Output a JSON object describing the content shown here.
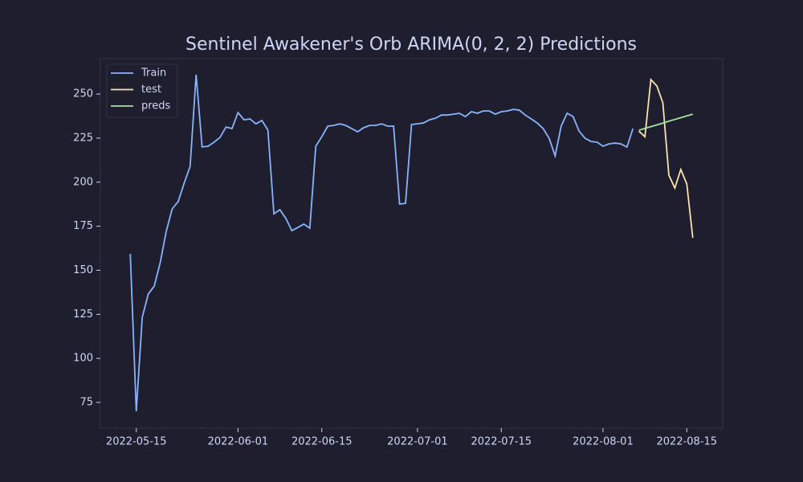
{
  "chart_data": {
    "type": "line",
    "title": "Sentinel Awakener's Orb ARIMA(0, 2, 2) Predictions",
    "xlim": [
      "2022-05-09",
      "2022-08-21"
    ],
    "xticks": [
      "2022-05-15",
      "2022-06-01",
      "2022-06-15",
      "2022-07-01",
      "2022-07-15",
      "2022-08-01",
      "2022-08-15"
    ],
    "ylim": [
      60.4,
      270.1
    ],
    "yticks": [
      75,
      100,
      125,
      150,
      175,
      200,
      225,
      250
    ],
    "legend": "upper left",
    "series": [
      {
        "name": "Train",
        "color": "#89b4fa",
        "x": [
          "2022-05-14",
          "2022-05-15",
          "2022-05-16",
          "2022-05-17",
          "2022-05-18",
          "2022-05-19",
          "2022-05-20",
          "2022-05-21",
          "2022-05-22",
          "2022-05-23",
          "2022-05-24",
          "2022-05-25",
          "2022-05-26",
          "2022-05-27",
          "2022-05-28",
          "2022-05-29",
          "2022-05-30",
          "2022-05-31",
          "2022-06-01",
          "2022-06-02",
          "2022-06-03",
          "2022-06-04",
          "2022-06-05",
          "2022-06-06",
          "2022-06-07",
          "2022-06-08",
          "2022-06-09",
          "2022-06-10",
          "2022-06-11",
          "2022-06-12",
          "2022-06-13",
          "2022-06-14",
          "2022-06-15",
          "2022-06-16",
          "2022-06-17",
          "2022-06-18",
          "2022-06-19",
          "2022-06-20",
          "2022-06-21",
          "2022-06-22",
          "2022-06-23",
          "2022-06-24",
          "2022-06-25",
          "2022-06-26",
          "2022-06-27",
          "2022-06-28",
          "2022-06-29",
          "2022-06-30",
          "2022-07-01",
          "2022-07-02",
          "2022-07-03",
          "2022-07-04",
          "2022-07-05",
          "2022-07-06",
          "2022-07-07",
          "2022-07-08",
          "2022-07-09",
          "2022-07-10",
          "2022-07-11",
          "2022-07-12",
          "2022-07-13",
          "2022-07-14",
          "2022-07-15",
          "2022-07-16",
          "2022-07-17",
          "2022-07-18",
          "2022-07-19",
          "2022-07-20",
          "2022-07-21",
          "2022-07-22",
          "2022-07-23",
          "2022-07-24",
          "2022-07-25",
          "2022-07-26",
          "2022-07-27",
          "2022-07-28",
          "2022-07-29",
          "2022-07-30",
          "2022-07-31",
          "2022-08-01",
          "2022-08-02",
          "2022-08-03",
          "2022-08-04",
          "2022-08-05",
          "2022-08-06"
        ],
        "values": [
          159.3,
          70,
          123.3,
          136.5,
          141,
          154.3,
          172,
          184.8,
          189,
          199.4,
          209,
          261,
          220,
          220.4,
          222.7,
          225.4,
          231.3,
          230.4,
          239.5,
          235.4,
          235.9,
          233.1,
          235,
          229.5,
          182,
          184.4,
          179.4,
          172.5,
          174.3,
          176.2,
          173.9,
          220.4,
          225.8,
          231.8,
          232.2,
          233.1,
          232.2,
          230.4,
          228.6,
          230.9,
          232.2,
          232.2,
          233.1,
          231.8,
          231.8,
          187.6,
          188,
          232.7,
          233.1,
          233.6,
          235.4,
          236.3,
          238.1,
          238.1,
          238.6,
          239.1,
          237.2,
          240,
          239.1,
          240.4,
          240.4,
          238.6,
          240,
          240.4,
          241.3,
          240.9,
          238.1,
          235.9,
          233.6,
          230.4,
          224.9,
          214.9,
          231.8,
          239.1,
          237.2,
          229,
          224.9,
          223.1,
          222.7,
          220.4,
          221.7,
          222.2,
          221.7,
          219.9,
          230.4
        ]
      },
      {
        "name": "test",
        "color": "#f9e2af",
        "x": [
          "2022-08-07",
          "2022-08-08",
          "2022-08-09",
          "2022-08-10",
          "2022-08-11",
          "2022-08-12",
          "2022-08-13",
          "2022-08-14",
          "2022-08-15",
          "2022-08-16"
        ],
        "values": [
          229,
          225.8,
          258.2,
          254.6,
          245,
          204,
          196.7,
          207.2,
          199,
          168.4
        ]
      },
      {
        "name": "preds",
        "color": "#a6e3a1",
        "x": [
          "2022-08-07",
          "2022-08-08",
          "2022-08-09",
          "2022-08-10",
          "2022-08-11",
          "2022-08-12",
          "2022-08-13",
          "2022-08-14",
          "2022-08-15",
          "2022-08-16"
        ],
        "values": [
          229.5,
          230.5,
          231.5,
          232.5,
          233.5,
          234.6,
          235.6,
          236.6,
          237.6,
          238.6
        ]
      }
    ]
  }
}
